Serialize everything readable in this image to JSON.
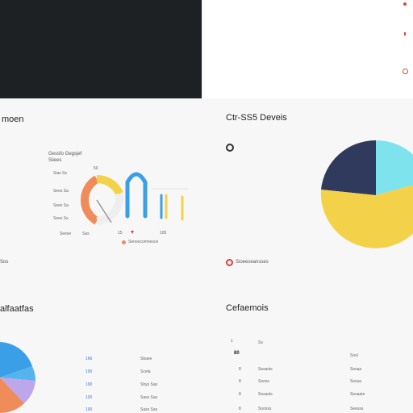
{
  "section_titles": {
    "left": "moen",
    "right": "Ctr-SS5 Deveis",
    "bottom_left": "alfaatfas",
    "bottom_right": "Cefaemois"
  },
  "left_chart": {
    "header_line1": "Gessfo Gegsjef",
    "header_line2": "Siiees",
    "row_labels": [
      "Sias Ss",
      "Sees Sa",
      "Sees Sa",
      "Sees Ss",
      "Seese"
    ],
    "axis_label": "Sas",
    "gauge_top_label": "50",
    "gauge_bottom_label": "15",
    "end_label": "105",
    "legend_text": "Senoocomnesce"
  },
  "left_section_footer": "Sos",
  "right_section": {
    "legend_text": "Sioeeseansses"
  },
  "bottom_left_table": {
    "header": "",
    "rows": [
      {
        "a": "166",
        "b": "Sbaee"
      },
      {
        "a": "100",
        "b": "Scela"
      },
      {
        "a": "190",
        "b": "Shys Sas"
      },
      {
        "a": "100",
        "b": "Sass Sas"
      },
      {
        "a": "190",
        "b": "Sass Sas"
      }
    ]
  },
  "bottom_right_table": {
    "header_index": "1",
    "header_label": "Ss",
    "header_value": "80",
    "col3_header": "Sosl",
    "rows": [
      {
        "idx": "8",
        "name": "Sesasts",
        "value": "Sesaa"
      },
      {
        "idx": "8",
        "name": "Sooss",
        "value": "Sossa"
      },
      {
        "idx": "8",
        "name": "Sesasts",
        "value": "Sesaate"
      },
      {
        "idx": "8",
        "name": "Soosss",
        "value": "Seesss"
      }
    ]
  },
  "colors": {
    "navy": "#2f3a5c",
    "cyan": "#7fe3ee",
    "yellow": "#f3d24a",
    "blue": "#3a9fe6",
    "orange": "#f08b5a",
    "lilac": "#bda6ea",
    "red": "#e0413c"
  }
}
